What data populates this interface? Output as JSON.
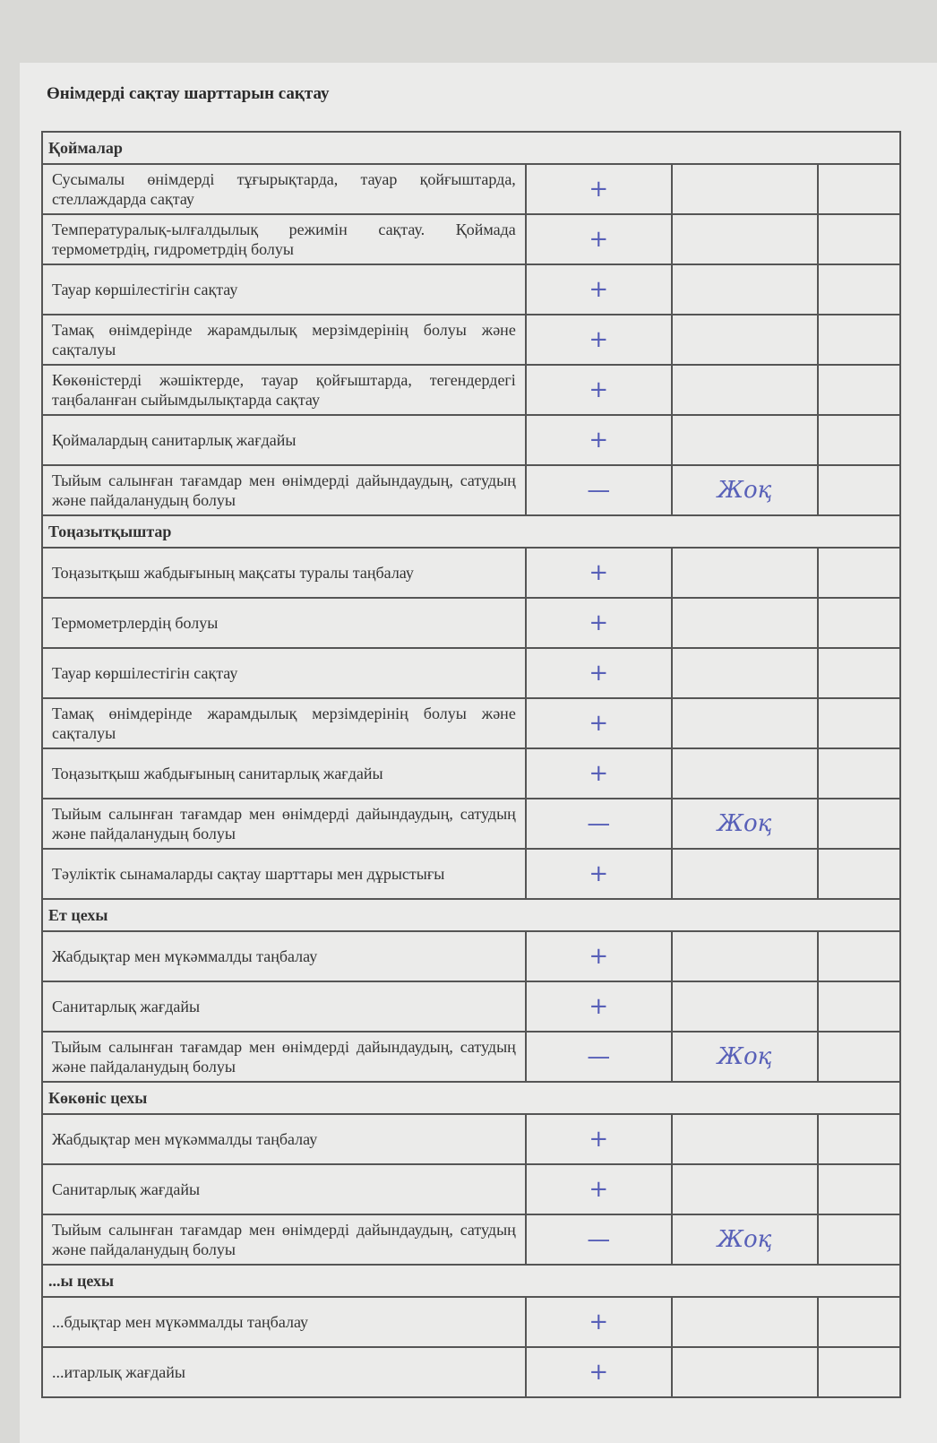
{
  "title": "Өнімдерді сақтау шарттарын сақтау",
  "ink_color": "#5860b8",
  "sections": [
    {
      "name": "Қоймалар",
      "rows": [
        {
          "text": "Сусымалы өнімдерді тұғырықтарда, тауар қойғыштарда, стеллаждарда сақтау",
          "mark": "+",
          "note": ""
        },
        {
          "text": "Температуралық-ылғалдылық режимін сақтау. Қоймада термометрдің, гидрометрдің болуы",
          "mark": "+",
          "note": ""
        },
        {
          "text": "Тауар көршілестігін сақтау",
          "mark": "+",
          "note": ""
        },
        {
          "text": "Тамақ өнімдерінде жарамдылық мерзімдерінің болуы және сақталуы",
          "mark": "+",
          "note": ""
        },
        {
          "text": "Көкөністерді жәшіктерде, тауар қойғыштарда, тегендердегі таңбаланған сыйымдылықтарда сақтау",
          "mark": "+",
          "note": ""
        },
        {
          "text": "Қоймалардың санитарлық жағдайы",
          "mark": "+",
          "note": ""
        },
        {
          "text": "Тыйым салынған тағамдар мен өнімдерді дайындаудың, сатудың және пайдаланудың болуы",
          "mark": "—",
          "note": "Жоқ"
        }
      ]
    },
    {
      "name": "Тоңазытқыштар",
      "rows": [
        {
          "text": "Тоңазытқыш жабдығының мақсаты туралы таңбалау",
          "mark": "+",
          "note": ""
        },
        {
          "text": "Термометрлердің болуы",
          "mark": "+",
          "note": ""
        },
        {
          "text": "Тауар көршілестігін сақтау",
          "mark": "+",
          "note": ""
        },
        {
          "text": "Тамақ өнімдерінде жарамдылық мерзімдерінің болуы және сақталуы",
          "mark": "+",
          "note": ""
        },
        {
          "text": "Тоңазытқыш жабдығының санитарлық жағдайы",
          "mark": "+",
          "note": ""
        },
        {
          "text": "Тыйым салынған тағамдар мен өнімдерді дайындаудың, сатудың және пайдаланудың болуы",
          "mark": "—",
          "note": "Жоқ"
        },
        {
          "text": "Тәуліктік сынамаларды сақтау шарттары мен дұрыстығы",
          "mark": "+",
          "note": ""
        }
      ]
    },
    {
      "name": "Ет цехы",
      "rows": [
        {
          "text": "Жабдықтар мен мүкәммалды таңбалау",
          "mark": "+",
          "note": ""
        },
        {
          "text": "Санитарлық жағдайы",
          "mark": "+",
          "note": ""
        },
        {
          "text": "Тыйым салынған тағамдар мен өнімдерді дайындаудың, сатудың және пайдаланудың болуы",
          "mark": "—",
          "note": "Жоқ"
        }
      ]
    },
    {
      "name": "Көкөніс цехы",
      "rows": [
        {
          "text": "Жабдықтар мен мүкәммалды таңбалау",
          "mark": "+",
          "note": ""
        },
        {
          "text": "Санитарлық жағдайы",
          "mark": "+",
          "note": ""
        },
        {
          "text": "Тыйым салынған тағамдар мен өнімдерді дайындаудың, сатудың және пайдаланудың болуы",
          "mark": "—",
          "note": "Жоқ"
        }
      ]
    },
    {
      "name": "...ы цехы",
      "rows": [
        {
          "text": "...бдықтар мен мүкәммалды таңбалау",
          "mark": "+",
          "note": ""
        },
        {
          "text": "...итарлық жағдайы",
          "mark": "+",
          "note": ""
        }
      ]
    }
  ]
}
